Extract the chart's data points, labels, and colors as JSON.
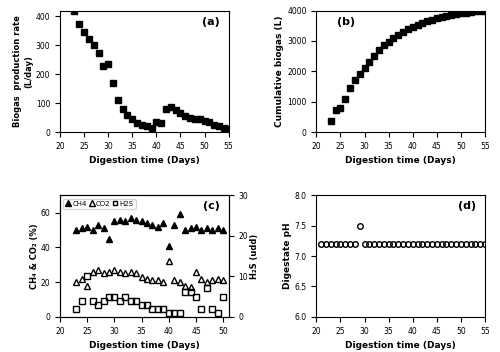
{
  "panel_a": {
    "x": [
      23,
      24,
      25,
      26,
      27,
      28,
      29,
      30,
      31,
      32,
      33,
      34,
      35,
      36,
      37,
      38,
      39,
      40,
      41,
      42,
      43,
      44,
      45,
      46,
      47,
      48,
      49,
      50,
      51,
      52,
      53,
      54,
      55
    ],
    "y": [
      420,
      375,
      345,
      320,
      300,
      275,
      230,
      235,
      170,
      110,
      80,
      60,
      45,
      30,
      25,
      20,
      15,
      35,
      30,
      80,
      85,
      75,
      65,
      55,
      50,
      45,
      45,
      40,
      35,
      25,
      20,
      15,
      10
    ],
    "xlabel": "Digestion time (Days)",
    "ylabel": "Biogas  production rate\n(L/day)",
    "label": "(a)",
    "xlim": [
      20,
      55
    ],
    "ylim": [
      0,
      420
    ],
    "yticks": [
      0,
      100,
      200,
      300,
      400
    ],
    "xticks": [
      20,
      25,
      30,
      35,
      40,
      45,
      50,
      55
    ]
  },
  "panel_b": {
    "x": [
      23,
      24,
      25,
      26,
      27,
      28,
      29,
      30,
      31,
      32,
      33,
      34,
      35,
      36,
      37,
      38,
      39,
      40,
      41,
      42,
      43,
      44,
      45,
      46,
      47,
      48,
      49,
      50,
      51,
      52,
      53,
      54,
      55
    ],
    "y": [
      350,
      720,
      800,
      1100,
      1450,
      1700,
      1900,
      2100,
      2300,
      2500,
      2700,
      2850,
      2980,
      3100,
      3200,
      3300,
      3380,
      3450,
      3520,
      3580,
      3640,
      3690,
      3740,
      3780,
      3820,
      3850,
      3880,
      3910,
      3935,
      3955,
      3970,
      3985,
      4000
    ],
    "xlabel": "Digestion time (Days)",
    "ylabel": "Cumulative biogas (L)",
    "label": "(b)",
    "xlim": [
      20,
      55
    ],
    "ylim": [
      0,
      4000
    ],
    "yticks": [
      0,
      1000,
      2000,
      3000,
      4000
    ],
    "xticks": [
      20,
      25,
      30,
      35,
      40,
      45,
      50,
      55
    ]
  },
  "panel_c": {
    "ch4_x": [
      23,
      24,
      25,
      26,
      27,
      28,
      29,
      30,
      31,
      32,
      33,
      34,
      35,
      36,
      37,
      38,
      39,
      40,
      41,
      42,
      43,
      44,
      45,
      46,
      47,
      48,
      49,
      50
    ],
    "ch4_y": [
      50,
      51,
      52,
      50,
      53,
      51,
      45,
      55,
      56,
      55,
      57,
      56,
      55,
      54,
      53,
      52,
      54,
      41,
      53,
      59,
      50,
      51,
      52,
      50,
      51,
      50,
      51,
      50
    ],
    "co2_x": [
      23,
      24,
      25,
      26,
      27,
      28,
      29,
      30,
      31,
      32,
      33,
      34,
      35,
      36,
      37,
      38,
      39,
      40,
      41,
      42,
      43,
      44,
      45,
      46,
      47,
      48,
      49,
      50
    ],
    "co2_y": [
      20,
      22,
      18,
      26,
      27,
      25,
      26,
      27,
      26,
      25,
      26,
      25,
      23,
      22,
      21,
      21,
      20,
      32,
      21,
      20,
      18,
      17,
      26,
      22,
      20,
      21,
      22,
      21
    ],
    "h2s_x": [
      23,
      24,
      25,
      26,
      27,
      28,
      29,
      30,
      31,
      32,
      33,
      34,
      35,
      36,
      37,
      38,
      39,
      40,
      41,
      42,
      43,
      44,
      45,
      46,
      47,
      48,
      49,
      50
    ],
    "h2s_y": [
      2,
      4,
      10,
      4,
      3,
      4,
      5,
      5,
      4,
      5,
      4,
      4,
      3,
      3,
      2,
      2,
      2,
      1,
      1,
      1,
      6,
      6,
      5,
      2,
      7,
      2,
      1,
      5
    ],
    "xlabel": "Digestion time (Days)",
    "ylabel_left": "CH₄ & CO₂ (%)",
    "ylabel_right": "H₂S (udd)",
    "label": "(c)",
    "xlim": [
      22,
      51
    ],
    "ylim_left": [
      0,
      70
    ],
    "ylim_right": [
      0,
      30
    ],
    "yticks_left": [
      0,
      20,
      40,
      60
    ],
    "yticks_right": [
      0,
      10,
      20,
      30
    ],
    "xticks": [
      20,
      25,
      30,
      35,
      40,
      45,
      50
    ]
  },
  "panel_d": {
    "x": [
      21,
      22,
      23,
      24,
      25,
      26,
      27,
      28,
      29,
      30,
      31,
      32,
      33,
      34,
      35,
      36,
      37,
      38,
      39,
      40,
      41,
      42,
      43,
      44,
      45,
      46,
      47,
      48,
      49,
      50,
      51,
      52,
      53,
      54,
      55
    ],
    "y": [
      7.2,
      7.2,
      7.2,
      7.2,
      7.2,
      7.2,
      7.2,
      7.2,
      7.5,
      7.2,
      7.2,
      7.2,
      7.2,
      7.2,
      7.2,
      7.2,
      7.2,
      7.2,
      7.2,
      7.2,
      7.2,
      7.2,
      7.2,
      7.2,
      7.2,
      7.2,
      7.2,
      7.2,
      7.2,
      7.2,
      7.2,
      7.2,
      7.2,
      7.2,
      7.2
    ],
    "xlabel": "Digestion time (Days)",
    "ylabel": "Digestate pH",
    "label": "(d)",
    "xlim": [
      20,
      55
    ],
    "ylim": [
      6.0,
      8.0
    ],
    "yticks": [
      6.0,
      6.5,
      7.0,
      7.5,
      8.0
    ],
    "xticks": [
      20,
      25,
      30,
      35,
      40,
      45,
      50,
      55
    ]
  },
  "marker_color": "black",
  "marker_size": 4
}
